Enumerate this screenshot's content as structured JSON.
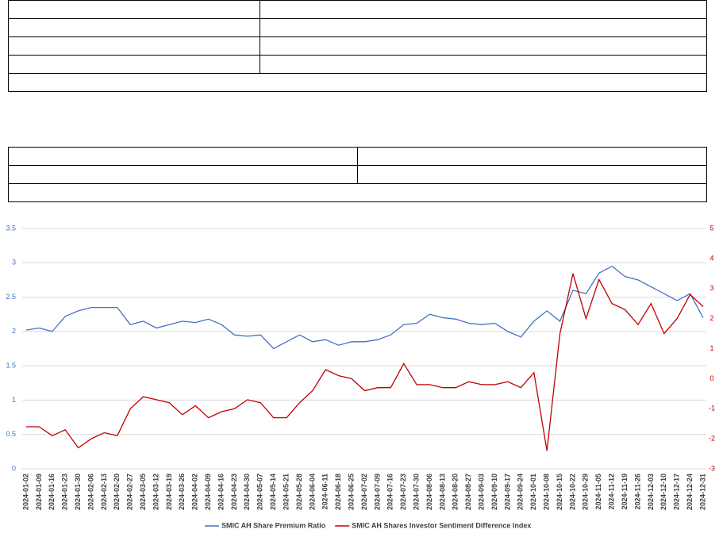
{
  "chart_data": {
    "type": "line",
    "categories": [
      "2024-01-02",
      "2024-01-09",
      "2024-01-16",
      "2024-01-23",
      "2024-01-30",
      "2024-02-06",
      "2024-02-13",
      "2024-02-20",
      "2024-02-27",
      "2024-03-05",
      "2024-03-12",
      "2024-03-19",
      "2024-03-26",
      "2024-04-02",
      "2024-04-09",
      "2024-04-16",
      "2024-04-23",
      "2024-04-30",
      "2024-05-07",
      "2024-05-14",
      "2024-05-21",
      "2024-05-28",
      "2024-06-04",
      "2024-06-11",
      "2024-06-18",
      "2024-06-25",
      "2024-07-02",
      "2024-07-09",
      "2024-07-16",
      "2024-07-23",
      "2024-07-30",
      "2024-08-06",
      "2024-08-13",
      "2024-08-20",
      "2024-08-27",
      "2024-09-03",
      "2024-09-10",
      "2024-09-17",
      "2024-09-24",
      "2024-10-01",
      "2024-10-08",
      "2024-10-15",
      "2024-10-22",
      "2024-10-29",
      "2024-11-05",
      "2024-11-12",
      "2024-11-19",
      "2024-11-26",
      "2024-12-03",
      "2024-12-10",
      "2024-12-17",
      "2024-12-24",
      "2024-12-31"
    ],
    "series": [
      {
        "name": "SMIC AH Share Premium Ratio",
        "color": "#4472c4",
        "values": [
          2.02,
          2.05,
          2.0,
          2.22,
          2.3,
          2.35,
          2.35,
          2.35,
          2.1,
          2.15,
          2.05,
          2.1,
          2.15,
          2.13,
          2.18,
          2.1,
          1.95,
          1.93,
          1.95,
          1.75,
          1.85,
          1.95,
          1.85,
          1.88,
          1.8,
          1.85,
          1.85,
          1.88,
          1.95,
          2.1,
          2.12,
          2.25,
          2.2,
          2.18,
          2.12,
          2.1,
          2.12,
          2.0,
          1.92,
          2.15,
          2.3,
          2.15,
          2.6,
          2.55,
          2.85,
          2.95,
          2.8,
          2.75,
          2.65,
          2.55,
          2.45,
          2.55,
          2.2
        ]
      },
      {
        "name": "SMIC AH Shares Investor Sentiment Difference Index",
        "color": "#c00000",
        "axis": "y2",
        "values": [
          -1.6,
          -1.6,
          -1.9,
          -1.7,
          -2.3,
          -2.0,
          -1.8,
          -1.9,
          -1.0,
          -0.6,
          -0.7,
          -0.8,
          -1.2,
          -0.9,
          -1.3,
          -1.1,
          -1.0,
          -0.7,
          -0.8,
          -1.3,
          -1.3,
          -0.8,
          -0.4,
          0.3,
          0.1,
          0.0,
          -0.4,
          -0.3,
          -0.3,
          0.5,
          -0.2,
          -0.2,
          -0.3,
          -0.3,
          -0.1,
          -0.2,
          -0.2,
          -0.1,
          -0.3,
          0.2,
          -2.4,
          1.5,
          3.5,
          2.0,
          3.3,
          2.5,
          2.3,
          1.8,
          2.5,
          1.5,
          2.0,
          2.8,
          2.4
        ]
      }
    ],
    "ylim": [
      0,
      3.5
    ],
    "yticks": [
      0,
      0.5,
      1,
      1.5,
      2,
      2.5,
      3,
      3.5
    ],
    "y2lim": [
      -3,
      5
    ],
    "y2ticks": [
      -3,
      -2,
      -1,
      0,
      1,
      2,
      3,
      4,
      5
    ],
    "grid": true,
    "legend": "bottom"
  }
}
